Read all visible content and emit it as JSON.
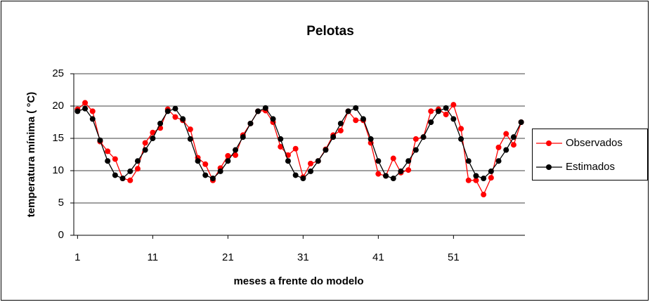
{
  "chart_data": {
    "type": "line",
    "title": "Pelotas",
    "x_label": "meses a frente do modelo",
    "y_label": "temperatura mínima ( °C)",
    "x": [
      1,
      2,
      3,
      4,
      5,
      6,
      7,
      8,
      9,
      10,
      11,
      12,
      13,
      14,
      15,
      16,
      17,
      18,
      19,
      20,
      21,
      22,
      23,
      24,
      25,
      26,
      27,
      28,
      29,
      30,
      31,
      32,
      33,
      34,
      35,
      36,
      37,
      38,
      39,
      40,
      41,
      42,
      43,
      44,
      45,
      46,
      47,
      48,
      49,
      50,
      51,
      52,
      53,
      54,
      55,
      56,
      57,
      58,
      59,
      60
    ],
    "series": [
      {
        "name": "Observados",
        "color": "#ff0000",
        "values": [
          19.5,
          20.5,
          19.2,
          14.5,
          13,
          11.8,
          8.8,
          8.5,
          10.3,
          14.3,
          15.9,
          16.6,
          19.5,
          18.3,
          17.8,
          16.4,
          12,
          11,
          8.5,
          10.4,
          12.3,
          12.4,
          15.5,
          17.3,
          19.2,
          19.3,
          17.5,
          13.7,
          12.4,
          13.4,
          9,
          11.1,
          11.5,
          13.3,
          15.5,
          16.2,
          19.2,
          17.8,
          17.8,
          14.3,
          9.5,
          9.2,
          11.9,
          9.7,
          10.1,
          14.9,
          15.2,
          19.2,
          19.5,
          18.7,
          20.2,
          16.5,
          8.5,
          8.5,
          6.3,
          8.9,
          13.6,
          15.7,
          14,
          17.5
        ]
      },
      {
        "name": "Estimados",
        "color": "#000000",
        "values": [
          19.2,
          19.6,
          18,
          14.7,
          11.5,
          9.3,
          8.8,
          9.9,
          11.5,
          13.2,
          15,
          17.3,
          19.2,
          19.6,
          18,
          14.9,
          11.5,
          9.3,
          8.8,
          9.9,
          11.5,
          13.2,
          15.2,
          17.3,
          19.2,
          19.7,
          18,
          14.9,
          11.5,
          9.3,
          8.8,
          9.9,
          11.5,
          13.2,
          15.2,
          17.3,
          19.2,
          19.7,
          18,
          14.9,
          11.5,
          9.2,
          8.8,
          9.9,
          11.5,
          13.2,
          15.2,
          17.5,
          19.2,
          19.7,
          18,
          14.9,
          11.5,
          9.2,
          8.8,
          9.9,
          11.5,
          13.2,
          15.2,
          17.5
        ]
      }
    ],
    "xlim": [
      0.5,
      60.5
    ],
    "xticks": [
      1,
      11,
      21,
      31,
      41,
      51
    ],
    "ylim": [
      0,
      25
    ],
    "yticks": [
      0,
      5,
      10,
      15,
      20,
      25
    ],
    "grid": true,
    "legend": "right"
  }
}
